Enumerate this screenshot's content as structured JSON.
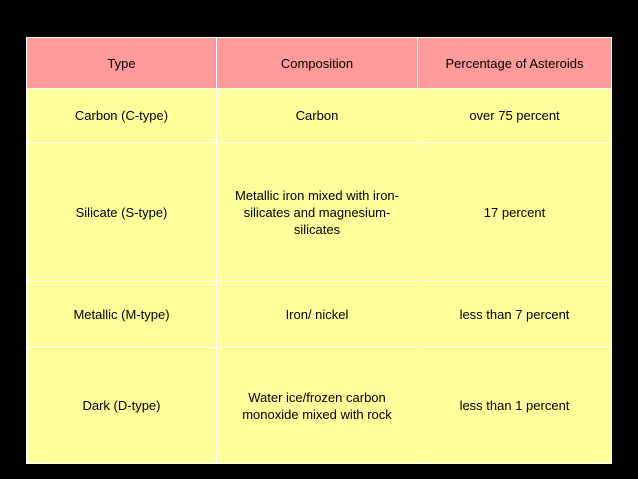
{
  "headers": [
    "Type",
    "Composition",
    "Percentage of Asteroids"
  ],
  "rows": [
    {
      "type": "Carbon (C-type)",
      "composition": "Carbon",
      "percentage": "over 75 percent"
    },
    {
      "type": "Silicate (S-type)",
      "composition": "Metallic iron mixed with iron-silicates and magnesium-silicates",
      "percentage": "17 percent"
    },
    {
      "type": "Metallic (M-type)",
      "composition": "Iron/ nickel",
      "percentage": "less than 7 percent"
    },
    {
      "type": "Dark (D-type)",
      "composition": "Water ice/frozen carbon monoxide mixed with rock",
      "percentage": "less than 1 percent"
    }
  ],
  "colors": {
    "background": "#000000",
    "header_fill": "#ff9a9a",
    "body_fill": "#ffff9c",
    "grid": "#ffffff"
  }
}
